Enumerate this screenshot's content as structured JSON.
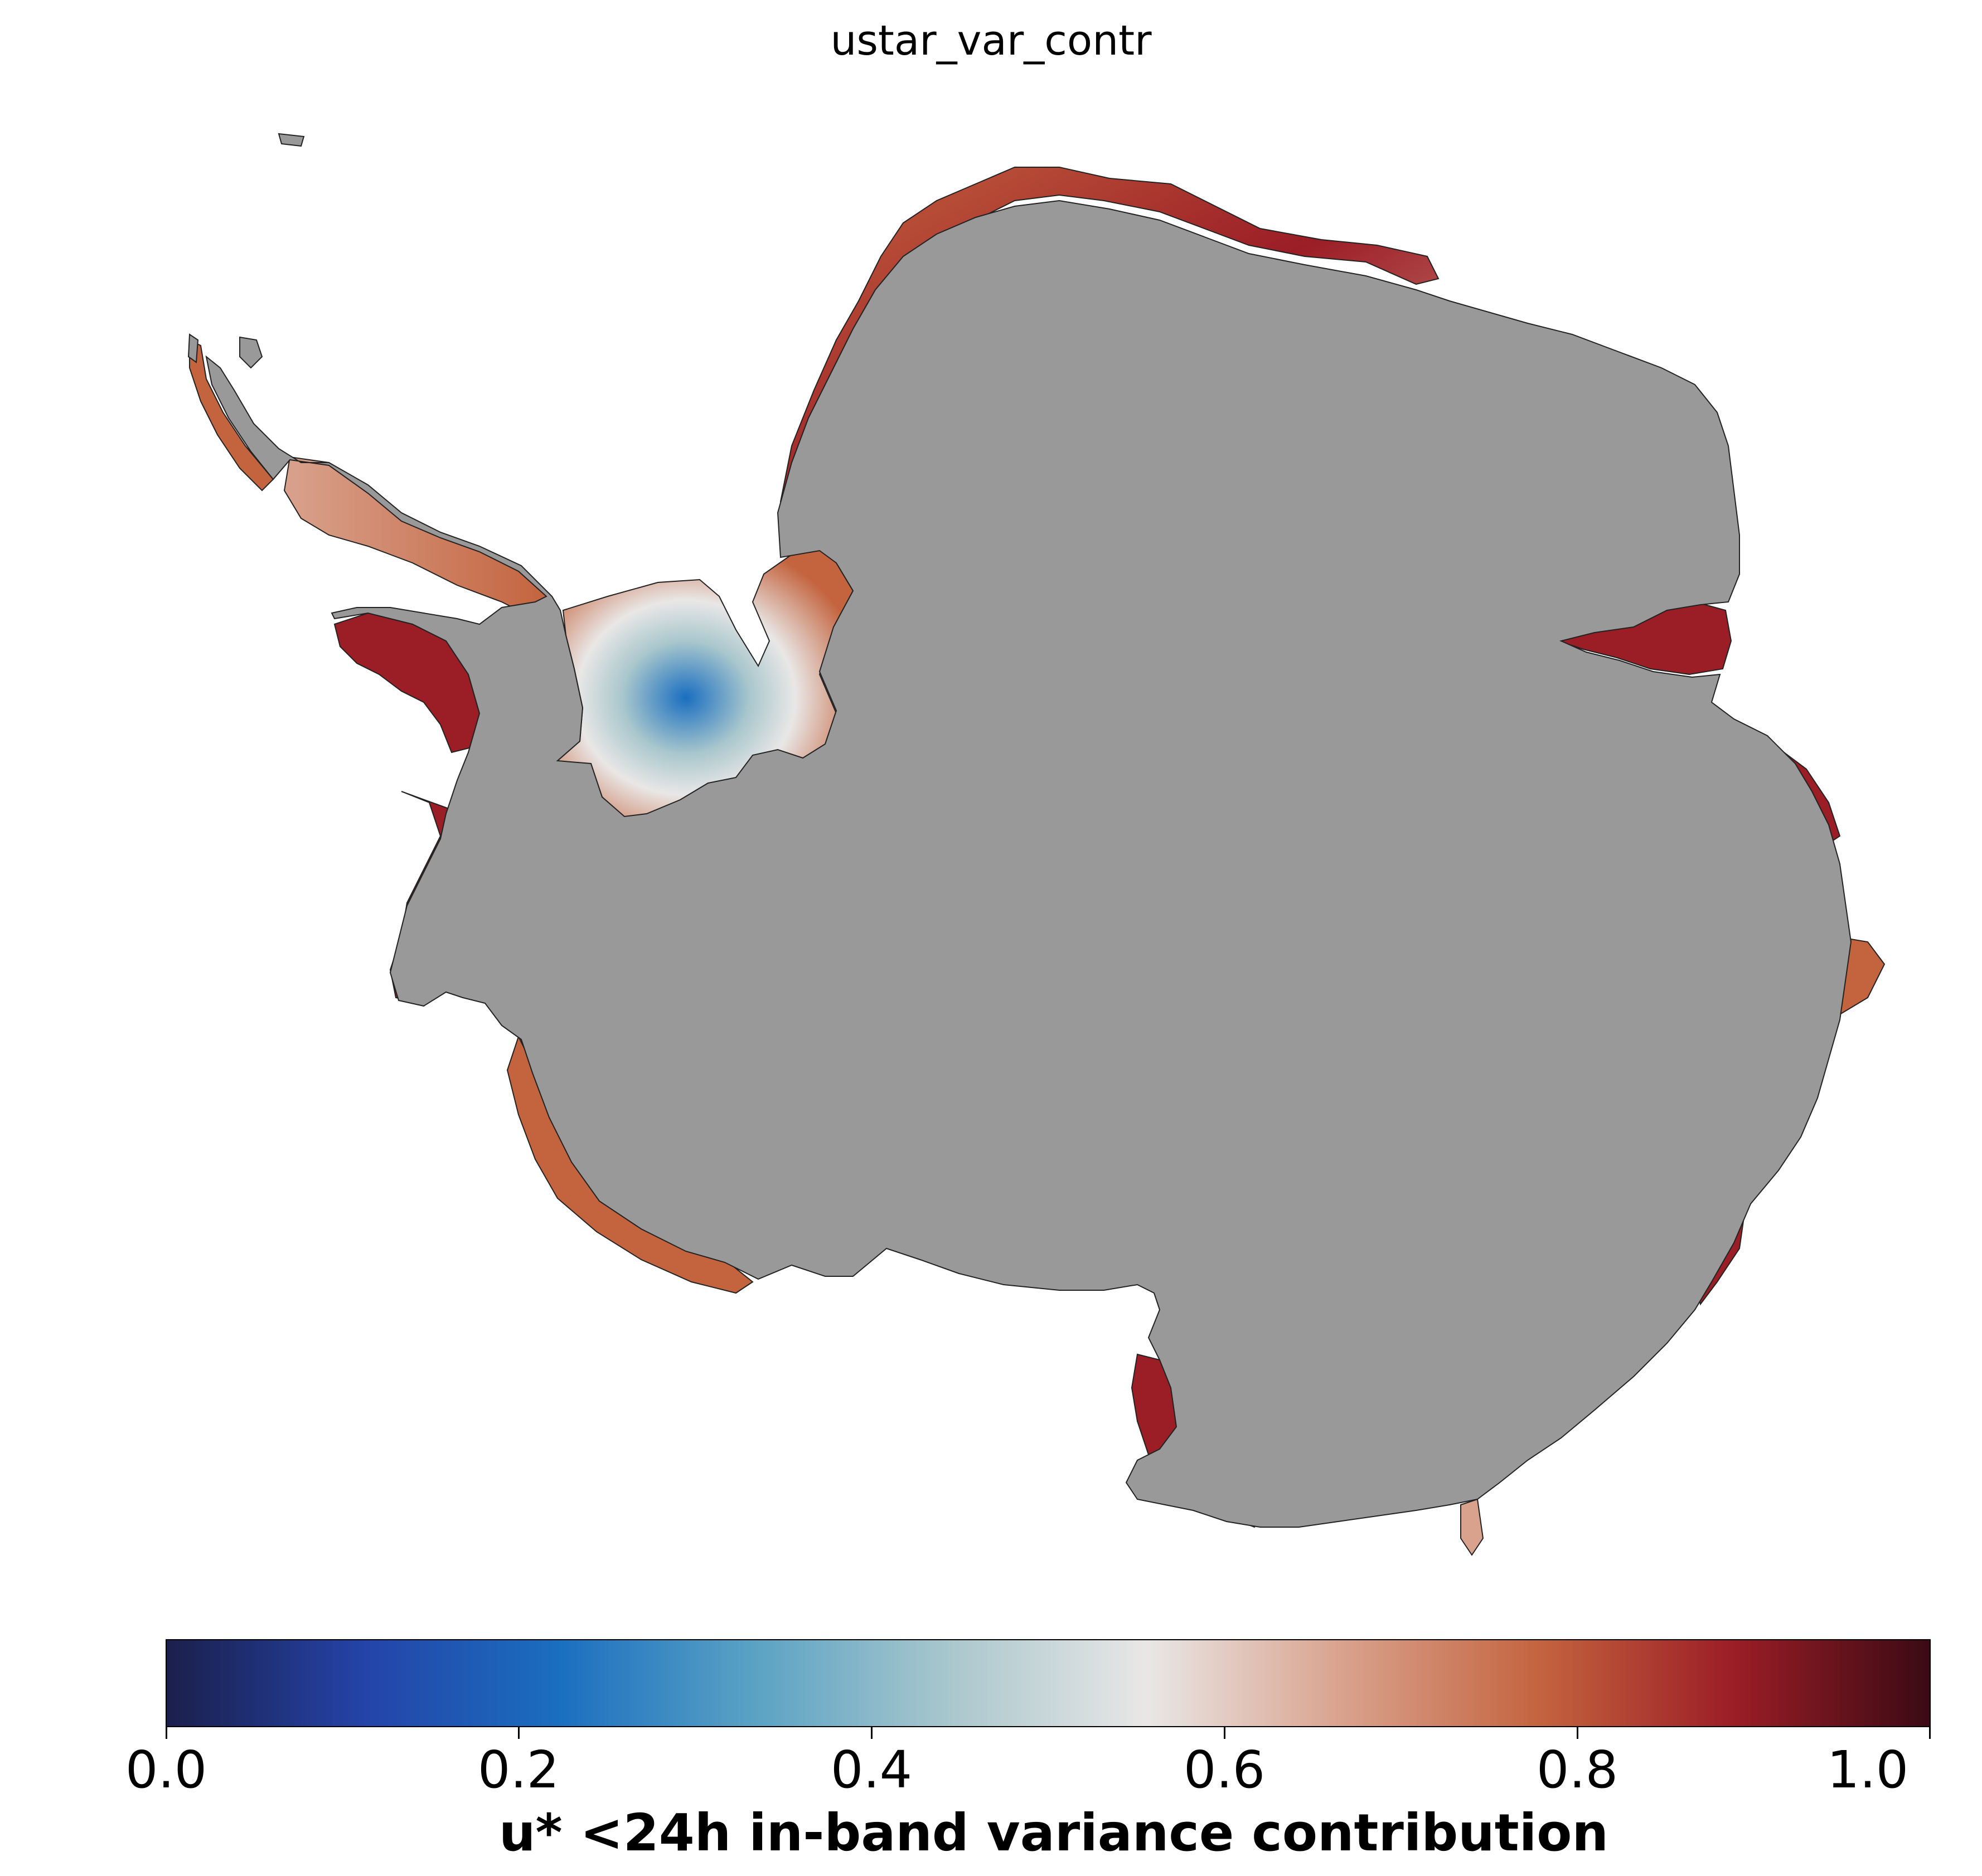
{
  "title": "ustar_var_contr",
  "colorbar": {
    "label": "u* <24h in-band variance contribution",
    "ticks": [
      "0.0",
      "0.2",
      "0.4",
      "0.6",
      "0.8",
      "1.0"
    ],
    "range": [
      0.0,
      1.0
    ],
    "colormap_stops": [
      "#1b1f4b",
      "#2443a8",
      "#1a6ec0",
      "#5aa2c4",
      "#a9c7cd",
      "#e9e7e6",
      "#d9a28d",
      "#c4643f",
      "#9b1d26",
      "#3b0a14"
    ]
  },
  "map": {
    "land_color": "#999999",
    "background": "#ffffff"
  }
}
